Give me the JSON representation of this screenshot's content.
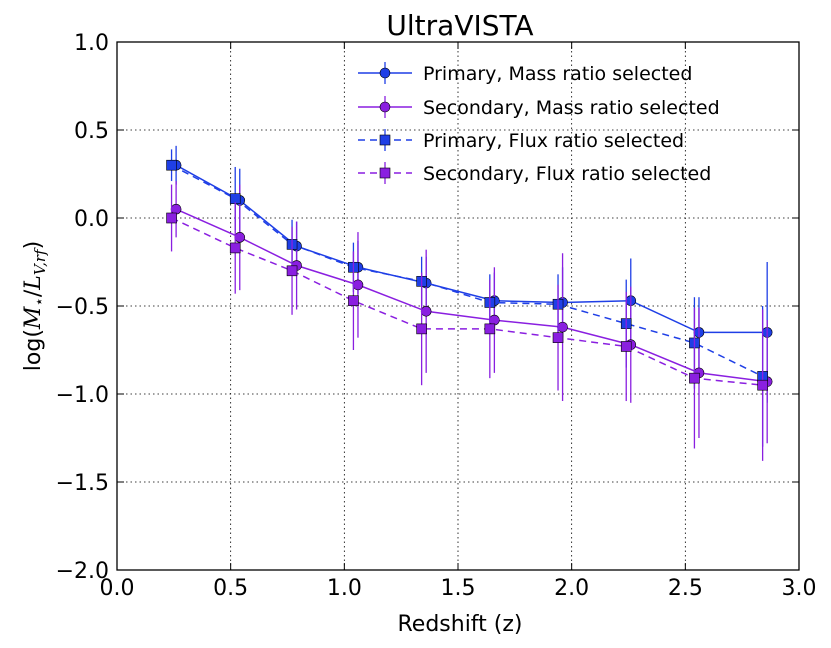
{
  "chart_data": {
    "type": "line",
    "title": "UltraVISTA",
    "xlabel": "Redshift (z)",
    "ylabel": {
      "prefix": "log(",
      "M": "M",
      "star": "⋆",
      "slash": "/",
      "L": "L",
      "sub": "V,rf",
      "suffix": ")"
    },
    "xlim": [
      0.0,
      3.0
    ],
    "ylim": [
      -2.0,
      1.0
    ],
    "xticks": [
      0.0,
      0.5,
      1.0,
      1.5,
      2.0,
      2.5,
      3.0
    ],
    "xtick_labels": [
      "0.0",
      "0.5",
      "1.0",
      "1.5",
      "2.0",
      "2.5",
      "3.0"
    ],
    "yticks": [
      1.0,
      0.5,
      0.0,
      -0.5,
      -1.0,
      -1.5,
      -2.0
    ],
    "ytick_labels": [
      "1.0",
      "0.5",
      "0.0",
      "−0.5",
      "−1.0",
      "−1.5",
      "−2.0"
    ],
    "grid": true,
    "legend_position": "top-right",
    "series": [
      {
        "name": "Primary, Mass ratio selected",
        "color": "#1f3fe6",
        "linestyle": "solid",
        "marker": "circle",
        "x": [
          0.26,
          0.54,
          0.79,
          1.06,
          1.36,
          1.66,
          1.96,
          2.26,
          2.56,
          2.86
        ],
        "y": [
          0.3,
          0.1,
          -0.16,
          -0.28,
          -0.37,
          -0.47,
          -0.48,
          -0.47,
          -0.65,
          -0.65
        ],
        "yerr": [
          0.11,
          0.18,
          0.14,
          0.15,
          0.15,
          0.16,
          0.2,
          0.24,
          0.2,
          0.4
        ]
      },
      {
        "name": "Secondary, Mass ratio selected",
        "color": "#8a1fe0",
        "linestyle": "solid",
        "marker": "circle",
        "x": [
          0.26,
          0.54,
          0.79,
          1.06,
          1.36,
          1.66,
          1.96,
          2.26,
          2.56,
          2.86
        ],
        "y": [
          0.05,
          -0.11,
          -0.27,
          -0.38,
          -0.53,
          -0.58,
          -0.62,
          -0.72,
          -0.88,
          -0.93
        ],
        "yerr": [
          0.16,
          0.3,
          0.25,
          0.3,
          0.35,
          0.3,
          0.42,
          0.33,
          0.37,
          0.35
        ]
      },
      {
        "name": "Primary, Flux ratio selected",
        "color": "#1f3fe6",
        "linestyle": "dashed",
        "marker": "square",
        "x": [
          0.24,
          0.52,
          0.77,
          1.04,
          1.34,
          1.64,
          1.94,
          2.24,
          2.54,
          2.84
        ],
        "y": [
          0.3,
          0.11,
          -0.15,
          -0.28,
          -0.36,
          -0.48,
          -0.49,
          -0.6,
          -0.71,
          -0.9
        ],
        "yerr": [
          0.09,
          0.18,
          0.14,
          0.14,
          0.14,
          0.16,
          0.17,
          0.25,
          0.26,
          0.4
        ]
      },
      {
        "name": "Secondary, Flux ratio selected",
        "color": "#8a1fe0",
        "linestyle": "dashed",
        "marker": "square",
        "x": [
          0.24,
          0.52,
          0.77,
          1.04,
          1.34,
          1.64,
          1.94,
          2.24,
          2.54,
          2.84
        ],
        "y": [
          0.0,
          -0.17,
          -0.3,
          -0.47,
          -0.63,
          -0.63,
          -0.68,
          -0.73,
          -0.91,
          -0.95
        ],
        "yerr": [
          0.19,
          0.26,
          0.25,
          0.28,
          0.32,
          0.28,
          0.3,
          0.31,
          0.4,
          0.43
        ]
      }
    ]
  }
}
